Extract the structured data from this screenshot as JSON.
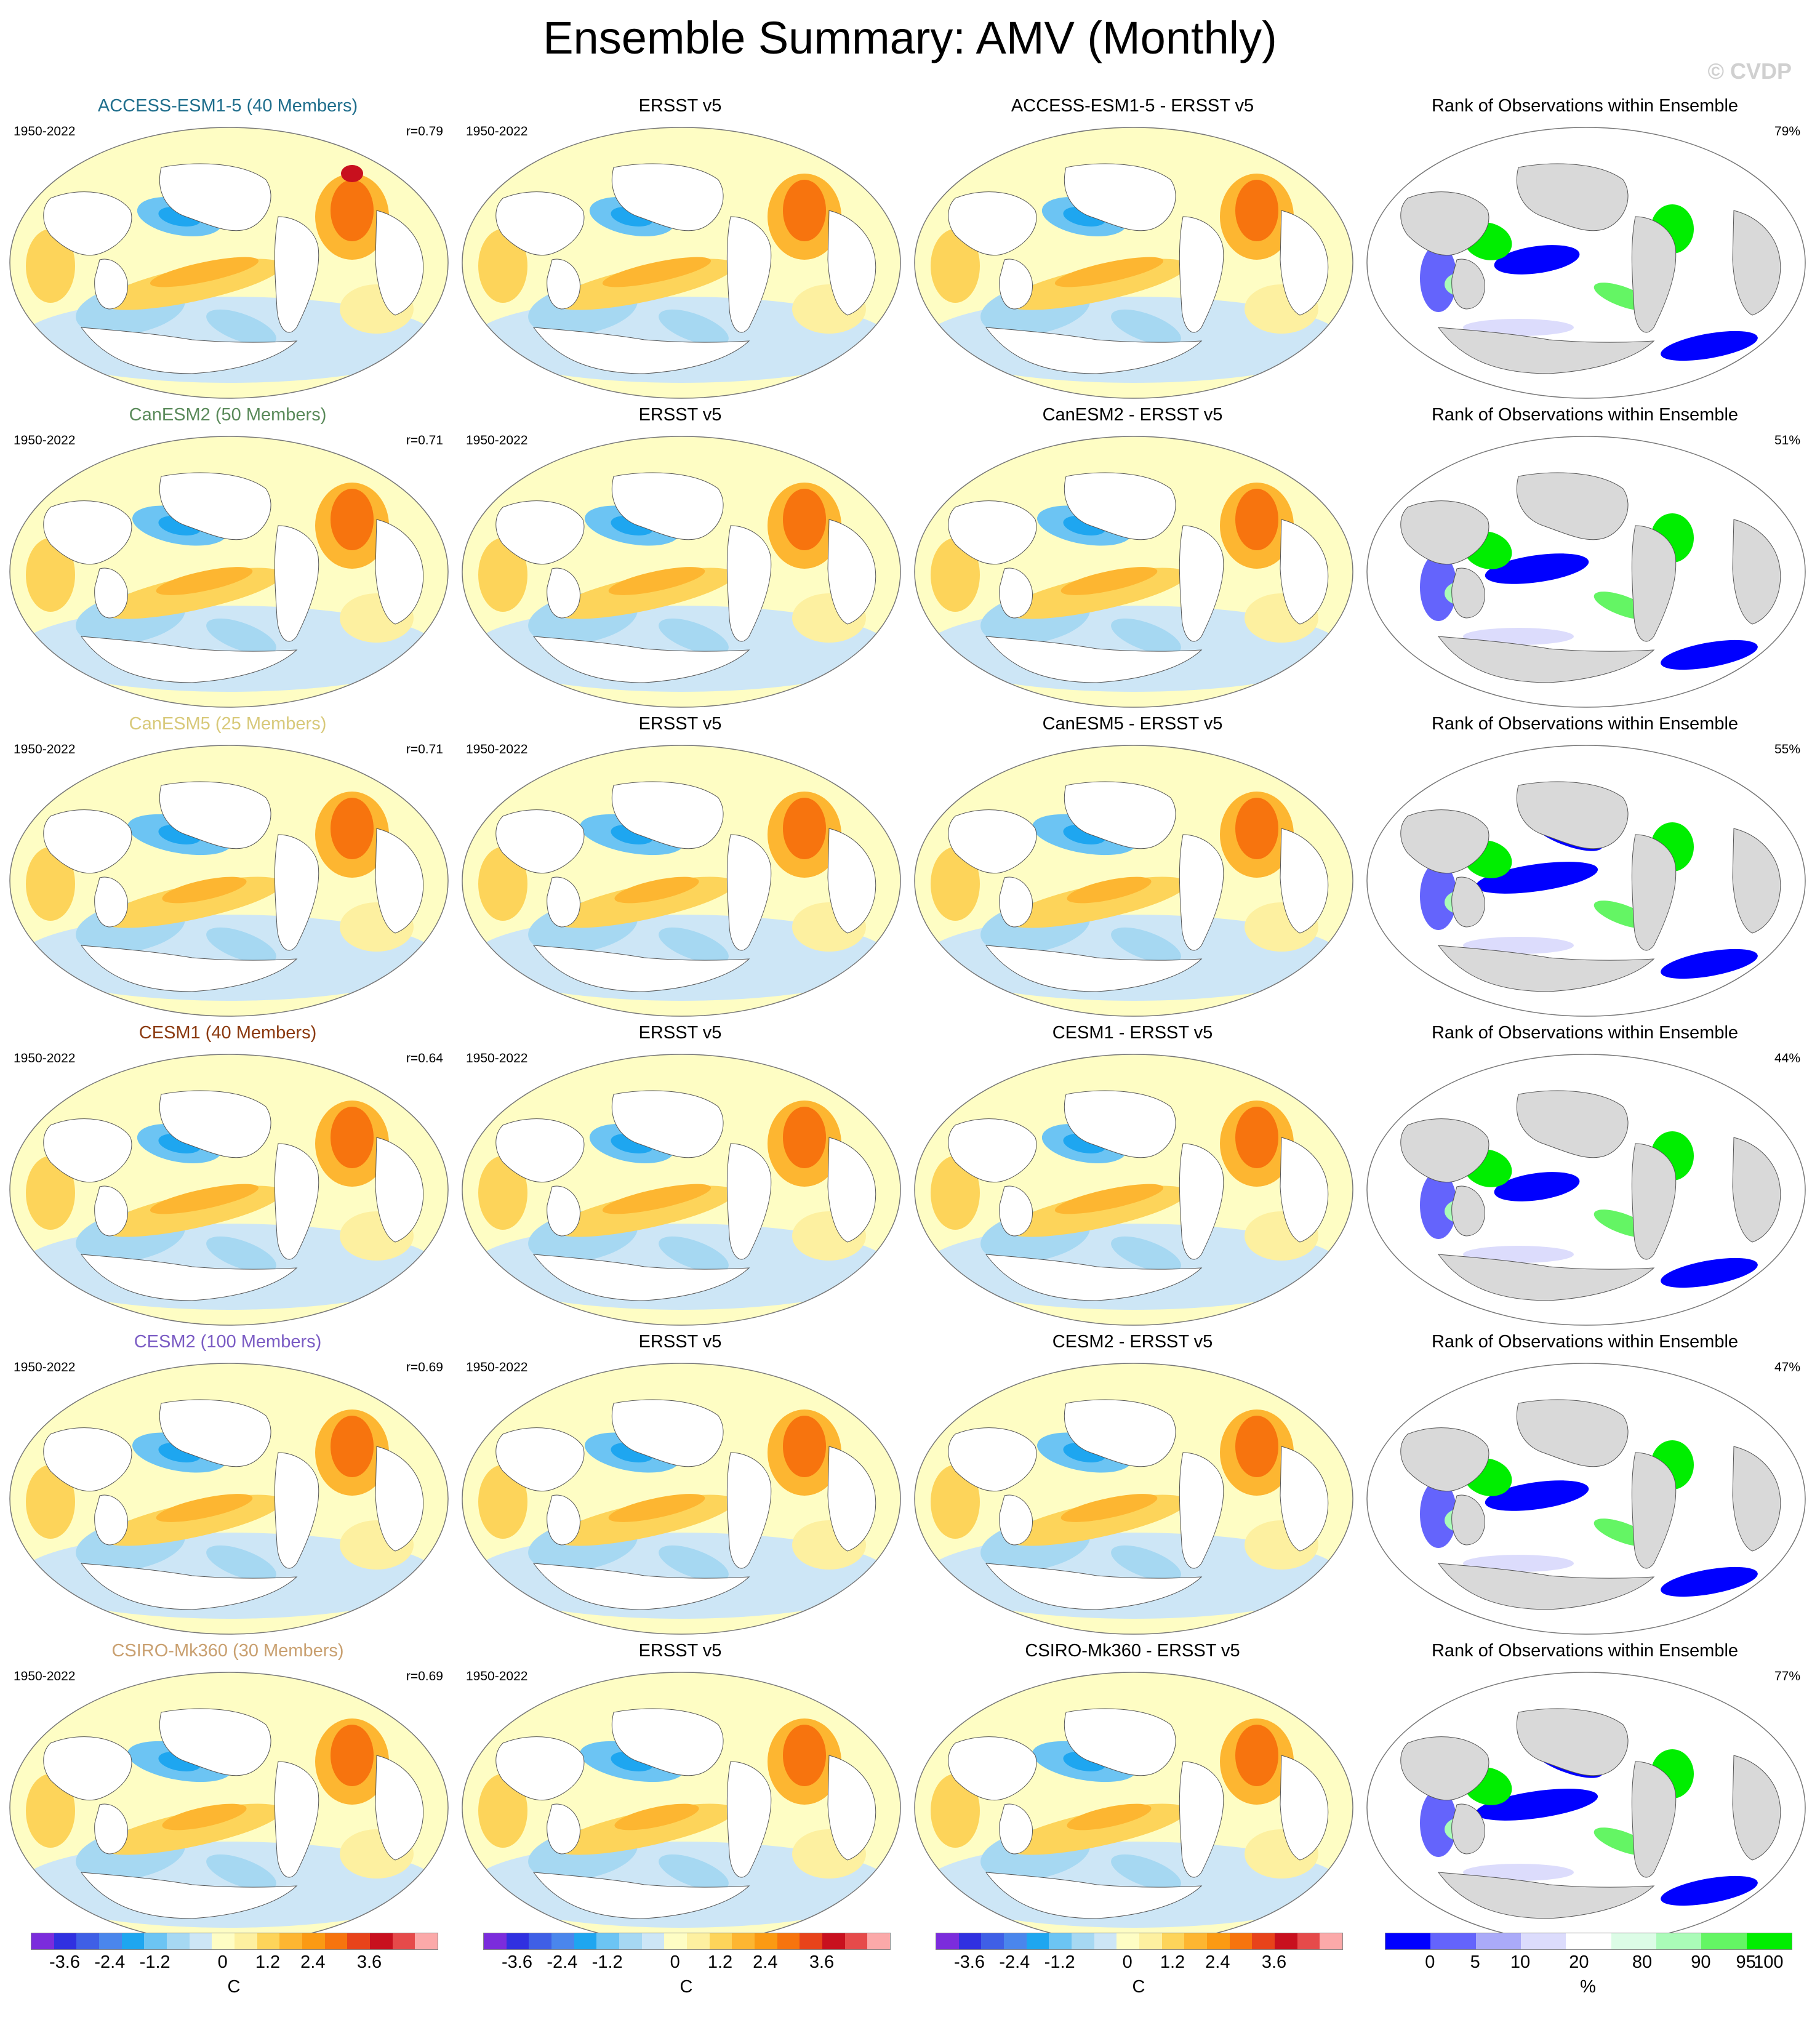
{
  "page": {
    "title": "Ensemble Summary: AMV (Monthly)",
    "watermark": "© CVDP"
  },
  "rows": [
    {
      "model_title": "ACCESS-ESM1-5 (40 Members)",
      "model_color": "#1f6e8c",
      "period": "1950-2022",
      "r": "r=0.79",
      "obs_title": "ERSST v5",
      "obs_period": "1950-2022",
      "diff_title": "ACCESS-ESM1-5 - ERSST v5",
      "rank_title": "Rank of Observations within Ensemble",
      "rank_pct": "79%"
    },
    {
      "model_title": "CanESM2 (50 Members)",
      "model_color": "#5a8a5a",
      "period": "1950-2022",
      "r": "r=0.71",
      "obs_title": "ERSST v5",
      "obs_period": "1950-2022",
      "diff_title": "CanESM2 - ERSST v5",
      "rank_title": "Rank of Observations within Ensemble",
      "rank_pct": "51%"
    },
    {
      "model_title": "CanESM5 (25 Members)",
      "model_color": "#d8c97a",
      "period": "1950-2022",
      "r": "r=0.71",
      "obs_title": "ERSST v5",
      "obs_period": "1950-2022",
      "diff_title": "CanESM5 - ERSST v5",
      "rank_title": "Rank of Observations within Ensemble",
      "rank_pct": "55%"
    },
    {
      "model_title": "CESM1 (40 Members)",
      "model_color": "#8b3a10",
      "period": "1950-2022",
      "r": "r=0.64",
      "obs_title": "ERSST v5",
      "obs_period": "1950-2022",
      "diff_title": "CESM1 - ERSST v5",
      "rank_title": "Rank of Observations within Ensemble",
      "rank_pct": "44%"
    },
    {
      "model_title": "CESM2 (100 Members)",
      "model_color": "#7b5cc4",
      "period": "1950-2022",
      "r": "r=0.69",
      "obs_title": "ERSST v5",
      "obs_period": "1950-2022",
      "diff_title": "CESM2 - ERSST v5",
      "rank_title": "Rank of Observations within Ensemble",
      "rank_pct": "47%"
    },
    {
      "model_title": "CSIRO-Mk360 (30 Members)",
      "model_color": "#c9a070",
      "period": "1950-2022",
      "r": "r=0.69",
      "obs_title": "ERSST v5",
      "obs_period": "1950-2022",
      "diff_title": "CSIRO-Mk360 - ERSST v5",
      "rank_title": "Rank of Observations within Ensemble",
      "rank_pct": "77%"
    }
  ],
  "colorbars": {
    "sst": {
      "colors": [
        "#7b2cdc",
        "#3030e0",
        "#3f5fe6",
        "#4a86ec",
        "#1ea6f0",
        "#6cc4f3",
        "#a6d8f2",
        "#cde6f6",
        "#fefdc4",
        "#fdf0a0",
        "#fdd45a",
        "#fdb631",
        "#fb9a13",
        "#f7740e",
        "#e8431a",
        "#c8101e",
        "#e64a4a",
        "#fba9a9"
      ],
      "ticks": [
        "-3.6",
        "-2.4",
        "-1.2",
        "0",
        "1.2",
        "2.4",
        "3.6"
      ],
      "unit": "C"
    },
    "rank": {
      "colors": [
        "#0000ff",
        "#6464fc",
        "#aaaaf8",
        "#dcdcfc",
        "#ffffff",
        "#dcfce6",
        "#aafbb8",
        "#64f564",
        "#00ee00"
      ],
      "ticks": [
        "0",
        "5",
        "10",
        "20",
        "80",
        "90",
        "95",
        "100"
      ],
      "unit": "%"
    }
  },
  "colors": {
    "land_rank": "#d9d9d9",
    "ocean_neutral": "#ffffff"
  }
}
